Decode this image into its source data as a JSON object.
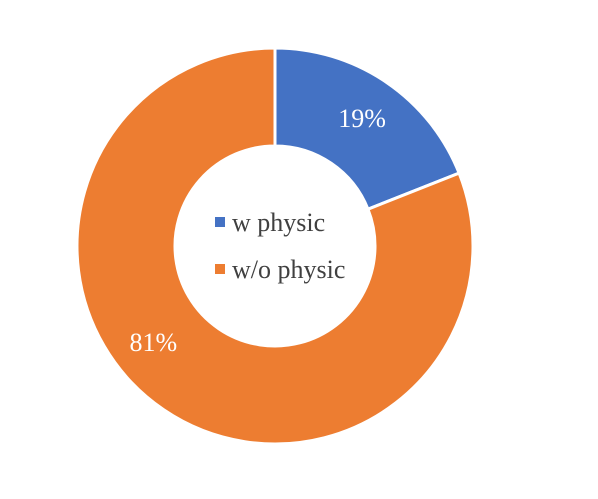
{
  "chart_data": {
    "type": "pie",
    "variant": "donut",
    "categories": [
      "w physic",
      "w/o physic"
    ],
    "values": [
      19,
      81
    ],
    "value_labels": [
      "19%",
      "81%"
    ],
    "colors": [
      "#4472C4",
      "#ED7D31"
    ],
    "legend": {
      "placement": "center",
      "entries": [
        "w physic",
        "w/o physic"
      ]
    },
    "title": "",
    "grid": false
  }
}
